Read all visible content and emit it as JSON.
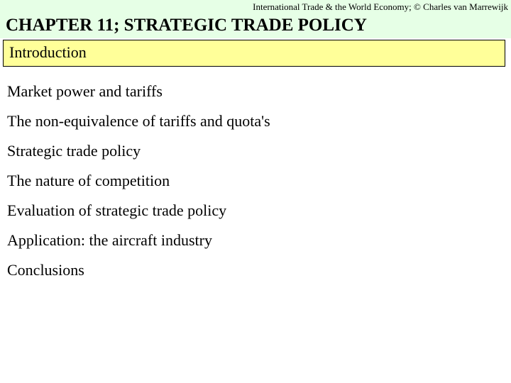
{
  "header": {
    "attribution": "International Trade & the World Economy;  © Charles van Marrewijk"
  },
  "chapter": {
    "title": "CHAPTER 11; STRATEGIC TRADE POLICY"
  },
  "highlight": {
    "current": "Introduction"
  },
  "topics": {
    "items": [
      "Market power and tariffs",
      "The non-equivalence of tariffs and quota's",
      "Strategic trade policy",
      "The nature of competition",
      "Evaluation of strategic trade policy",
      "Application: the aircraft industry",
      "Conclusions"
    ]
  },
  "colors": {
    "header_bg": "#e6ffe6",
    "highlight_bg": "#ffff99",
    "border": "#000000",
    "text": "#000000",
    "page_bg": "#ffffff"
  }
}
